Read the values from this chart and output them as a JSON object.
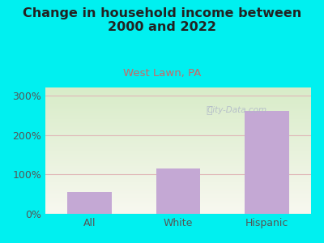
{
  "title": "Change in household income between\n2000 and 2022",
  "subtitle": "West Lawn, PA",
  "categories": [
    "All",
    "White",
    "Hispanic"
  ],
  "values": [
    55,
    115,
    260
  ],
  "bar_color": "#c4a8d4",
  "background_color": "#00f0f0",
  "grad_top": "#d8ecc8",
  "grad_bottom": "#f8f8f0",
  "grid_color": "#e0b8b8",
  "title_color": "#222222",
  "subtitle_color": "#cc6666",
  "tick_color": "#555555",
  "ylabel_ticks": [
    0,
    100,
    200,
    300
  ],
  "ylim": [
    0,
    320
  ],
  "watermark": "City-Data.com",
  "title_fontsize": 11.5,
  "subtitle_fontsize": 9.5
}
